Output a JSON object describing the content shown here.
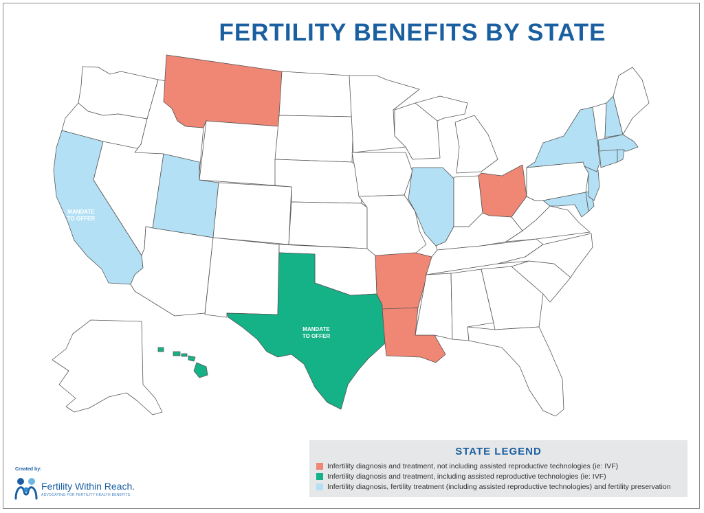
{
  "title": "FERTILITY BENEFITS BY STATE",
  "colors": {
    "not_including_art": "#f08674",
    "including_art": "#15b187",
    "fertility_preservation": "#b3e0f4",
    "no_mandate": "#ffffff",
    "border": "#555555"
  },
  "annotations": {
    "california": [
      "MANDATE",
      "TO OFFER"
    ],
    "texas": [
      "MANDATE",
      "TO OFFER"
    ]
  },
  "legend": {
    "title": "STATE LEGEND",
    "items": [
      {
        "key": "not_including_art",
        "label": "Infertility diagnosis and treatment, not including assisted reproductive technologies (ie: IVF)"
      },
      {
        "key": "including_art",
        "label": "Infertility diagnosis and treatment, including assisted reproductive technologies (ie: IVF)"
      },
      {
        "key": "fertility_preservation",
        "label": "Infertility diagnosis, fertility treatment (including assisted reproductive technologies) and fertility preservation"
      }
    ]
  },
  "credit": {
    "created_by": "Created by:",
    "org_name": "Fertility Within Reach.",
    "tagline": "ADVOCATING FOR FERTILITY HEALTH BENEFITS",
    "logo_icon": "family-figures-icon"
  },
  "states": {
    "montana": "not_including_art",
    "ohio": "not_including_art",
    "arkansas": "not_including_art",
    "louisiana": "not_including_art",
    "texas": "including_art",
    "hawaii": "including_art",
    "california": "fertility_preservation",
    "utah": "fertility_preservation",
    "illinois": "fertility_preservation",
    "new-york": "fertility_preservation",
    "new-hampshire": "fertility_preservation",
    "connecticut": "fertility_preservation",
    "rhode-island": "fertility_preservation",
    "massachusetts": "fertility_preservation",
    "new-jersey": "fertility_preservation",
    "delaware": "fertility_preservation",
    "maryland": "fertility_preservation"
  }
}
